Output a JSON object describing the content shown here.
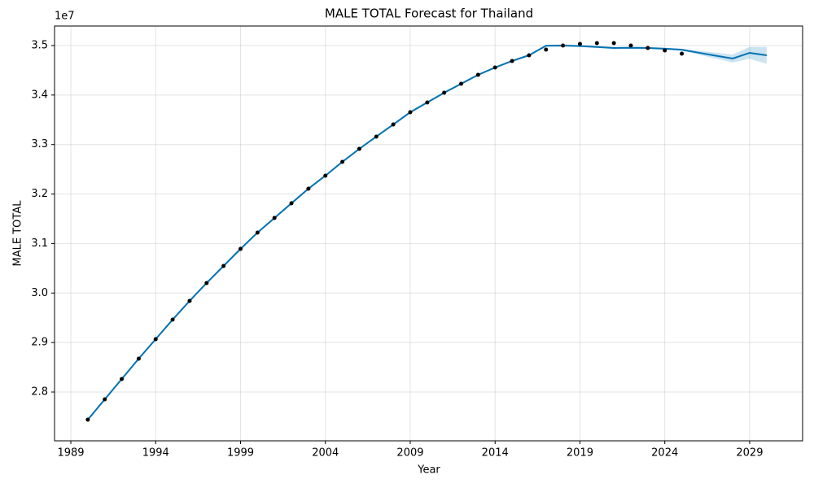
{
  "chart_data": {
    "type": "line",
    "title": "MALE TOTAL Forecast for Thailand",
    "x_label": "Year",
    "y_label": "MALE TOTAL",
    "y_offset_label": "1e7",
    "x": [
      1990,
      1991,
      1992,
      1993,
      1994,
      1995,
      1996,
      1997,
      1998,
      1999,
      2000,
      2001,
      2002,
      2003,
      2004,
      2005,
      2006,
      2007,
      2008,
      2009,
      2010,
      2011,
      2012,
      2013,
      2014,
      2015,
      2016,
      2017,
      2018,
      2019,
      2020,
      2021,
      2022,
      2023,
      2024,
      2025,
      2026,
      2027,
      2028,
      2029,
      2030
    ],
    "series": [
      {
        "type": "line",
        "color": "#0072B2",
        "values": [
          27441000,
          27852000,
          28263000,
          28674000,
          29068000,
          29463000,
          29841000,
          30202000,
          30547000,
          30892000,
          31221000,
          31517000,
          31813000,
          32108000,
          32371000,
          32650000,
          32913000,
          33160000,
          33405000,
          33652000,
          33850000,
          34047000,
          34228000,
          34408000,
          34556000,
          34688000,
          34803000,
          34995000,
          35000000,
          34990000,
          34970000,
          34950000,
          34955000,
          34950000,
          34935000,
          34915000,
          34855000,
          34795000,
          34737000,
          34852000,
          34803000
        ],
        "lower": [
          27421000,
          27832000,
          28243000,
          28654000,
          29048000,
          29443000,
          29821000,
          30182000,
          30527000,
          30872000,
          31201000,
          31497000,
          31793000,
          32088000,
          32351000,
          32630000,
          32893000,
          33140000,
          33385000,
          33632000,
          33830000,
          34027000,
          34208000,
          34388000,
          34536000,
          34668000,
          34783000,
          34975000,
          34980000,
          34970000,
          34950000,
          34930000,
          34935000,
          34930000,
          34915000,
          34895000,
          34815000,
          34735000,
          34657000,
          34732000,
          34633000
        ],
        "upper": [
          27461000,
          27872000,
          28283000,
          28694000,
          29088000,
          29483000,
          29861000,
          30222000,
          30567000,
          30912000,
          31241000,
          31537000,
          31833000,
          32128000,
          32391000,
          32670000,
          32933000,
          33180000,
          33425000,
          33672000,
          33870000,
          34067000,
          34248000,
          34428000,
          34576000,
          34708000,
          34823000,
          35015000,
          35020000,
          35010000,
          34990000,
          34970000,
          34975000,
          34970000,
          34955000,
          34935000,
          34895000,
          34855000,
          34817000,
          34972000,
          34973000
        ]
      },
      {
        "type": "scatter",
        "color": "#000000",
        "values": [
          27441000,
          27852000,
          28263000,
          28674000,
          29068000,
          29463000,
          29841000,
          30202000,
          30547000,
          30892000,
          31221000,
          31517000,
          31813000,
          32108000,
          32371000,
          32650000,
          32913000,
          33160000,
          33405000,
          33652000,
          33850000,
          34047000,
          34228000,
          34408000,
          34556000,
          34688000,
          34803000,
          34918000,
          35000000,
          35033000,
          35049000,
          35049000,
          35000000,
          34951000,
          34901000,
          34836000,
          null,
          null,
          null,
          null,
          null
        ]
      }
    ],
    "xlim": [
      1988.04,
      2032.12
    ],
    "xticks": [
      1989,
      1994,
      1999,
      2004,
      2009,
      2014,
      2019,
      2024,
      2029
    ],
    "ylim": [
      27014000,
      35394000
    ],
    "yticks": [
      {
        "value": 28000000,
        "label": "2.8"
      },
      {
        "value": 29000000,
        "label": "2.9"
      },
      {
        "value": 30000000,
        "label": "3.0"
      },
      {
        "value": 31000000,
        "label": "3.1"
      },
      {
        "value": 32000000,
        "label": "3.2"
      },
      {
        "value": 33000000,
        "label": "3.3"
      },
      {
        "value": 34000000,
        "label": "3.4"
      },
      {
        "value": 35000000,
        "label": "3.5"
      }
    ],
    "grid": true
  }
}
